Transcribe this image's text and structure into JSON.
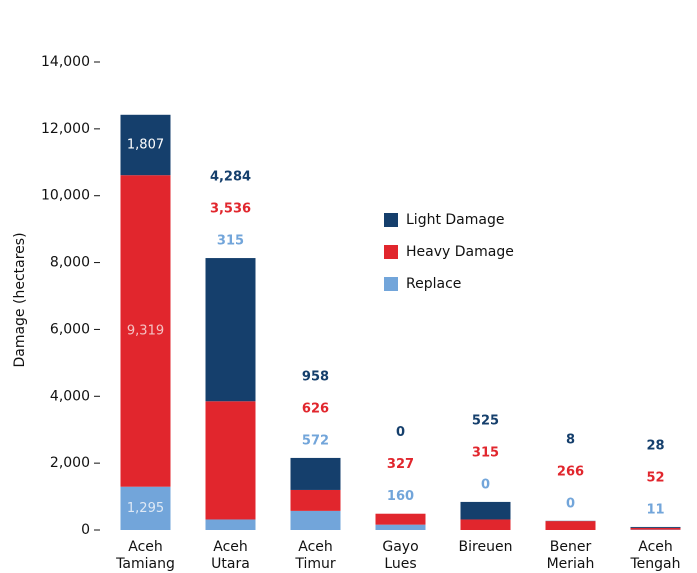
{
  "chart_data": {
    "type": "stacked_bar",
    "y_label": "Damage (hectares)",
    "categories": [
      "Aceh Tamiang",
      "Aceh Utara",
      "Aceh Timur",
      "Gayo Lues",
      "Bireuen",
      "Bener Meriah",
      "Aceh Tengah"
    ],
    "series": [
      {
        "name": "Light Damage",
        "color": "#153f6c",
        "values": [
          1807,
          4284,
          958,
          0,
          525,
          8,
          28
        ],
        "value_labels": [
          "1,807",
          "4,284",
          "958",
          "0",
          "525",
          "8",
          "28"
        ]
      },
      {
        "name": "Heavy Damage",
        "color": "#e1262d",
        "values": [
          9319,
          3536,
          626,
          327,
          315,
          266,
          52
        ],
        "value_labels": [
          "9,319",
          "3,536",
          "626",
          "327",
          "315",
          "266",
          "52"
        ]
      },
      {
        "name": "Replace",
        "color": "#72a5da",
        "values": [
          1295,
          315,
          572,
          160,
          0,
          0,
          11
        ],
        "value_labels": [
          "1,295",
          "315",
          "572",
          "160",
          "0",
          "0",
          "11"
        ]
      }
    ],
    "ylim": [
      0,
      14000
    ],
    "yticks": [
      0,
      {
        "value": 2000,
        "label": "2,000"
      },
      {
        "value": 4000,
        "label": "4,000"
      },
      {
        "value": 6000,
        "label": "6,000"
      },
      {
        "value": 8000,
        "label": "8,000"
      },
      {
        "value": 10000,
        "label": "10,000"
      },
      {
        "value": 12000,
        "label": "12,000"
      },
      {
        "value": 14000,
        "label": "14,000"
      }
    ],
    "grid": false
  }
}
